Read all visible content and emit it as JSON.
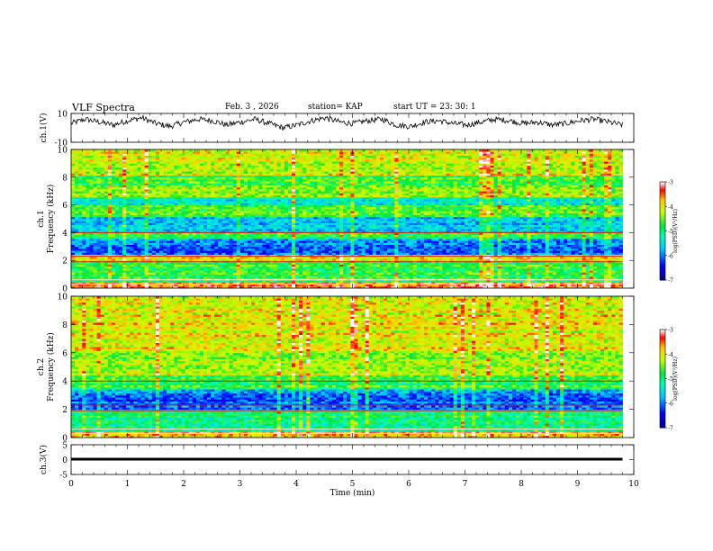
{
  "header": {
    "title": "VLF Spectra",
    "date": "Feb. 3 , 2026",
    "station": "station= KAP",
    "start": "start UT = 23: 30: 1"
  },
  "chart_data": [
    {
      "type": "line",
      "panel": "ch1-waveform",
      "ylabel": "ch.1(V)",
      "ylim": [
        -10,
        10
      ],
      "yticks": [
        "10",
        "-10"
      ],
      "xlim": [
        0,
        10
      ],
      "note_values": "noisy waveform, mostly between -4 and 8 V",
      "series": [
        {
          "values_sample": [
            3,
            6,
            4,
            2,
            5,
            7,
            3,
            1,
            4,
            6,
            5,
            2,
            4,
            6,
            3,
            0,
            2,
            5,
            7,
            4,
            3,
            5,
            6,
            2,
            1,
            4,
            5,
            3,
            2,
            4,
            6,
            5,
            3,
            4,
            2,
            3,
            5,
            6,
            4,
            2
          ]
        }
      ]
    },
    {
      "type": "heatmap",
      "panel": "ch1-spectrogram",
      "ylabel_lines": [
        "ch.1",
        "Frequency (kHz)"
      ],
      "ylim": [
        0,
        10
      ],
      "yticks": [
        "0",
        "2",
        "4",
        "6",
        "8",
        "10"
      ],
      "xlim": [
        0,
        10
      ],
      "colorbar": {
        "label": "log(PSD)(V²/Hz)",
        "range": [
          -7,
          -3
        ],
        "ticks": [
          "-3",
          "-4",
          "-5",
          "-6",
          "-7"
        ]
      },
      "band_values_log_psd": [
        {
          "f": [
            0,
            0.5
          ],
          "v": -3.6
        },
        {
          "f": [
            0.5,
            2.0
          ],
          "v": -4.7
        },
        {
          "f": [
            2.0,
            2.5
          ],
          "v": -4.0
        },
        {
          "f": [
            2.5,
            3.6
          ],
          "v": -6.0
        },
        {
          "f": [
            3.6,
            4.0
          ],
          "v": -4.8
        },
        {
          "f": [
            4.0,
            5.1
          ],
          "v": -5.7
        },
        {
          "f": [
            5.1,
            6.0
          ],
          "v": -4.7
        },
        {
          "f": [
            6.0,
            6.6
          ],
          "v": -5.3
        },
        {
          "f": [
            6.6,
            7.5
          ],
          "v": -4.4
        },
        {
          "f": [
            7.5,
            8.2
          ],
          "v": -4.7
        },
        {
          "f": [
            8.2,
            10.0
          ],
          "v": -4.1
        }
      ]
    },
    {
      "type": "heatmap",
      "panel": "ch2-spectrogram",
      "ylabel_lines": [
        "ch.2",
        "Frequency (kHz)"
      ],
      "ylim": [
        0,
        10
      ],
      "yticks": [
        "0",
        "2",
        "4",
        "6",
        "8",
        "10"
      ],
      "xlim": [
        0,
        10
      ],
      "colorbar": {
        "label": "log(PSD)(V²/Hz)",
        "range": [
          -7,
          -3
        ],
        "ticks": [
          "-3",
          "-4",
          "-5",
          "-6",
          "-7"
        ]
      },
      "band_values_log_psd": [
        {
          "f": [
            0,
            0.5
          ],
          "v": -3.6
        },
        {
          "f": [
            0.5,
            2.0
          ],
          "v": -5.0
        },
        {
          "f": [
            2.0,
            3.5
          ],
          "v": -6.0
        },
        {
          "f": [
            3.5,
            4.5
          ],
          "v": -4.8
        },
        {
          "f": [
            4.5,
            6.0
          ],
          "v": -4.3
        },
        {
          "f": [
            6.0,
            8.0
          ],
          "v": -4.1
        },
        {
          "f": [
            8.0,
            10.0
          ],
          "v": -4.0
        }
      ]
    },
    {
      "type": "line",
      "panel": "ch3-waveform",
      "ylabel": "ch.3(V)",
      "ylim": [
        -5,
        5
      ],
      "yticks": [
        "5",
        "0",
        "-5"
      ],
      "xlim": [
        0,
        10
      ],
      "series": [
        {
          "band_min": -0.3,
          "band_max": 0.6
        }
      ]
    }
  ],
  "xaxis": {
    "label": "Time (min)",
    "ticks": [
      "0",
      "1",
      "2",
      "3",
      "4",
      "5",
      "6",
      "7",
      "8",
      "9",
      "10"
    ]
  }
}
